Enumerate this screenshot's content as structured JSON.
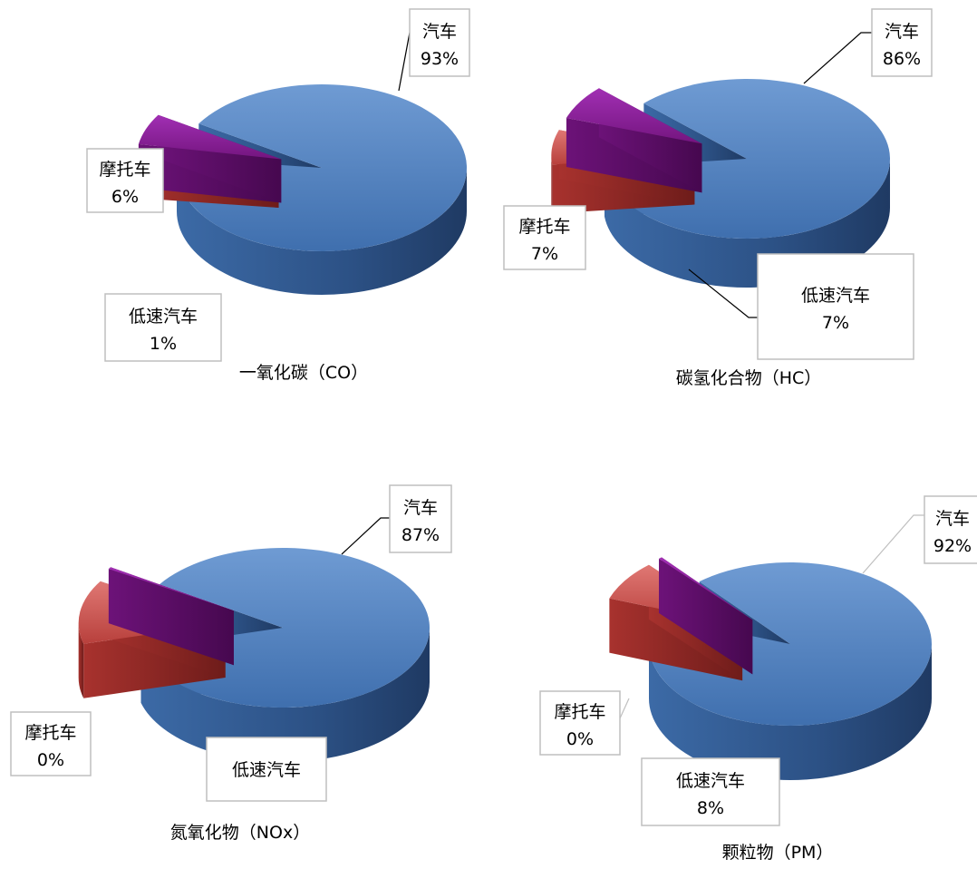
{
  "chart_data": [
    {
      "type": "pie",
      "title": "一氧化碳（CO）",
      "slices": [
        {
          "label": "汽车",
          "value": 93,
          "value_text": "93%",
          "color": "#4f81bd"
        },
        {
          "label": "低速汽车",
          "value": 1,
          "value_text": "1%",
          "color": "#c0504d"
        },
        {
          "label": "摩托车",
          "value": 6,
          "value_text": "6%",
          "color": "#7f1e8c"
        }
      ]
    },
    {
      "type": "pie",
      "title": "碳氢化合物（HC）",
      "slices": [
        {
          "label": "汽车",
          "value": 86,
          "value_text": "86%",
          "color": "#4f81bd"
        },
        {
          "label": "低速汽车",
          "value": 7,
          "value_text": "7%",
          "color": "#c0504d"
        },
        {
          "label": "摩托车",
          "value": 7,
          "value_text": "7%",
          "color": "#7f1e8c"
        }
      ]
    },
    {
      "type": "pie",
      "title": "氮氧化物（NOx）",
      "slices": [
        {
          "label": "汽车",
          "value": 87,
          "value_text": "87%",
          "color": "#4f81bd"
        },
        {
          "label": "低速汽车",
          "value": 13,
          "value_text": "",
          "color": "#c0504d"
        },
        {
          "label": "摩托车",
          "value": 0.4,
          "value_text": "0%",
          "color": "#6a2a86"
        }
      ]
    },
    {
      "type": "pie",
      "title": "颗粒物（PM）",
      "slices": [
        {
          "label": "汽车",
          "value": 92,
          "value_text": "92%",
          "color": "#4f81bd"
        },
        {
          "label": "低速汽车",
          "value": 8,
          "value_text": "8%",
          "color": "#c0504d"
        },
        {
          "label": "摩托车",
          "value": 0.4,
          "value_text": "0%",
          "color": "#6a2a86"
        }
      ]
    }
  ]
}
